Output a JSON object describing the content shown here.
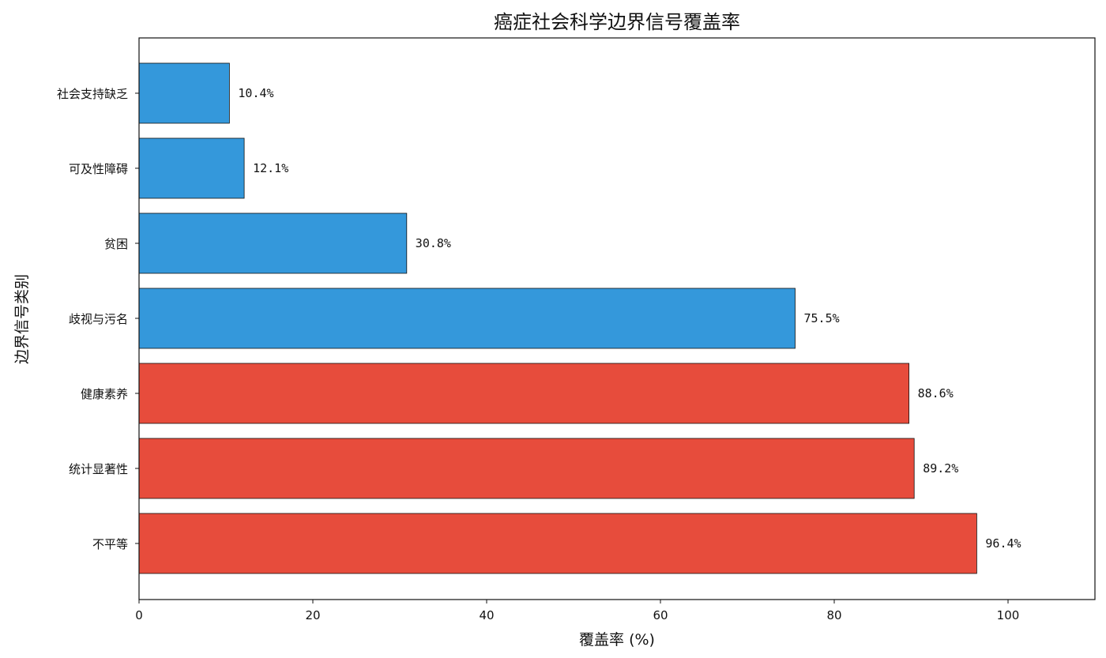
{
  "chart_data": {
    "type": "bar",
    "orientation": "horizontal",
    "title": "癌症社会科学边界信号覆盖率",
    "xlabel": "覆盖率 (%)",
    "ylabel": "边界信号类别",
    "xlim": [
      0,
      110
    ],
    "xticks": [
      0,
      20,
      40,
      60,
      80,
      100
    ],
    "grid": false,
    "categories": [
      "不平等",
      "统计显著性",
      "健康素养",
      "歧视与污名",
      "贫困",
      "可及性障碍",
      "社会支持缺乏"
    ],
    "values": [
      96.4,
      89.2,
      88.6,
      75.5,
      30.8,
      12.1,
      10.4
    ],
    "labels": [
      "96.4%",
      "89.2%",
      "88.6%",
      "75.5%",
      "30.8%",
      "12.1%",
      "10.4%"
    ],
    "bar_colors": [
      "#e74c3c",
      "#e74c3c",
      "#e74c3c",
      "#3498db",
      "#3498db",
      "#3498db",
      "#3498db"
    ],
    "edge_color": "#111111"
  }
}
